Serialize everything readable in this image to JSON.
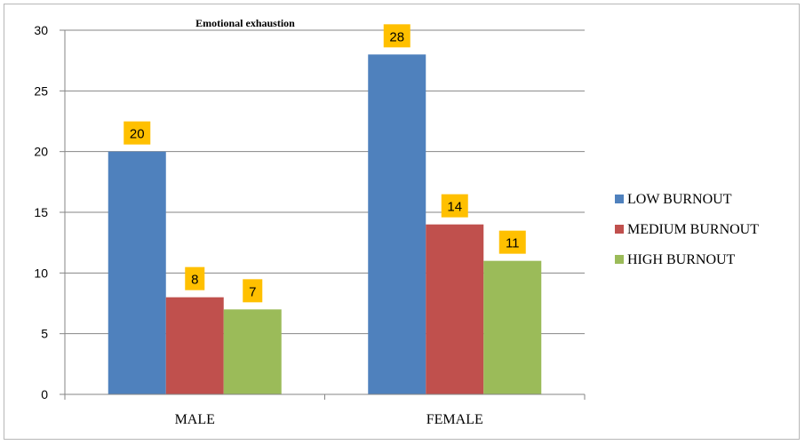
{
  "chart_data": {
    "type": "bar",
    "title": "Emotional exhaustion",
    "categories": [
      "MALE",
      "FEMALE"
    ],
    "series": [
      {
        "name": "LOW BURNOUT",
        "values": [
          20,
          28
        ],
        "color": "#4f81bd"
      },
      {
        "name": "MEDIUM BURNOUT",
        "values": [
          8,
          14
        ],
        "color": "#c0504d"
      },
      {
        "name": "HIGH BURNOUT",
        "values": [
          7,
          11
        ],
        "color": "#9bbb59"
      }
    ],
    "ylim": [
      0,
      30
    ],
    "yticks": [
      0,
      5,
      10,
      15,
      20,
      25,
      30
    ],
    "grid": true,
    "legend": "right",
    "label_bg": "#ffc000"
  }
}
